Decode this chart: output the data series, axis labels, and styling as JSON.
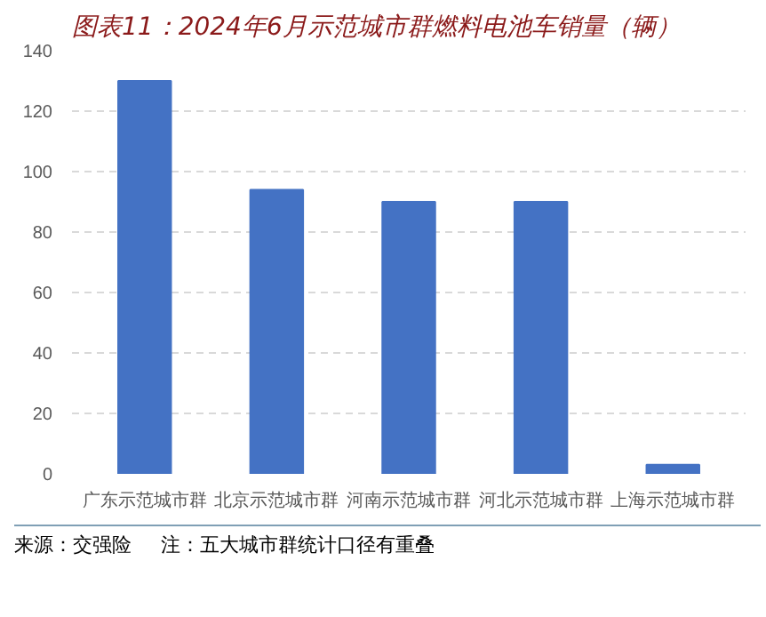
{
  "chart_data": {
    "type": "bar",
    "title": "图表11：2024年6月示范城市群燃料电池车销量（辆）",
    "categories": [
      "广东示范城市群",
      "北京示范城市群",
      "河南示范城市群",
      "河北示范城市群",
      "上海示范城市群"
    ],
    "values": [
      130,
      94,
      90,
      90,
      3
    ],
    "color": "#4472c4",
    "ylim": [
      0,
      140
    ],
    "yticks": [
      0,
      20,
      40,
      60,
      80,
      100,
      120,
      140
    ],
    "grid": "y",
    "annotations": [
      "来源：交强险",
      "注：五大城市群统计口径有重叠"
    ]
  }
}
